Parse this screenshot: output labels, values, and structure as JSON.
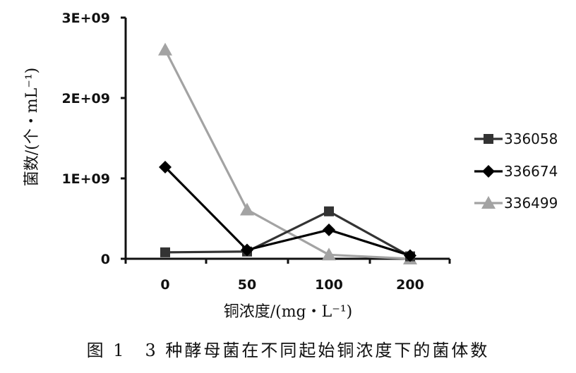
{
  "chart_data": {
    "type": "line",
    "xlabel": "铜浓度/(mg・L⁻¹)",
    "ylabel": "菌数/(个・mL⁻¹)",
    "categories": [
      "0",
      "50",
      "100",
      "200"
    ],
    "ylim": [
      0,
      3000000000
    ],
    "yticks": [
      {
        "value": 0,
        "label": "0"
      },
      {
        "value": 1000000000,
        "label": "1E+09"
      },
      {
        "value": 2000000000,
        "label": "2E+09"
      },
      {
        "value": 3000000000,
        "label": "3E+09"
      }
    ],
    "grid": false,
    "legend_position": "right",
    "series": [
      {
        "name": "336058",
        "values": [
          80000000,
          90000000,
          590000000,
          30000000
        ],
        "color": "#333333",
        "marker": "square"
      },
      {
        "name": "336674",
        "values": [
          1140000000,
          110000000,
          360000000,
          40000000
        ],
        "color": "#000000",
        "marker": "diamond"
      },
      {
        "name": "336499",
        "values": [
          2600000000,
          610000000,
          50000000,
          0
        ],
        "color": "#a3a3a3",
        "marker": "triangle"
      }
    ]
  },
  "caption": "图 1　3 种酵母菌在不同起始铜浓度下的菌体数"
}
